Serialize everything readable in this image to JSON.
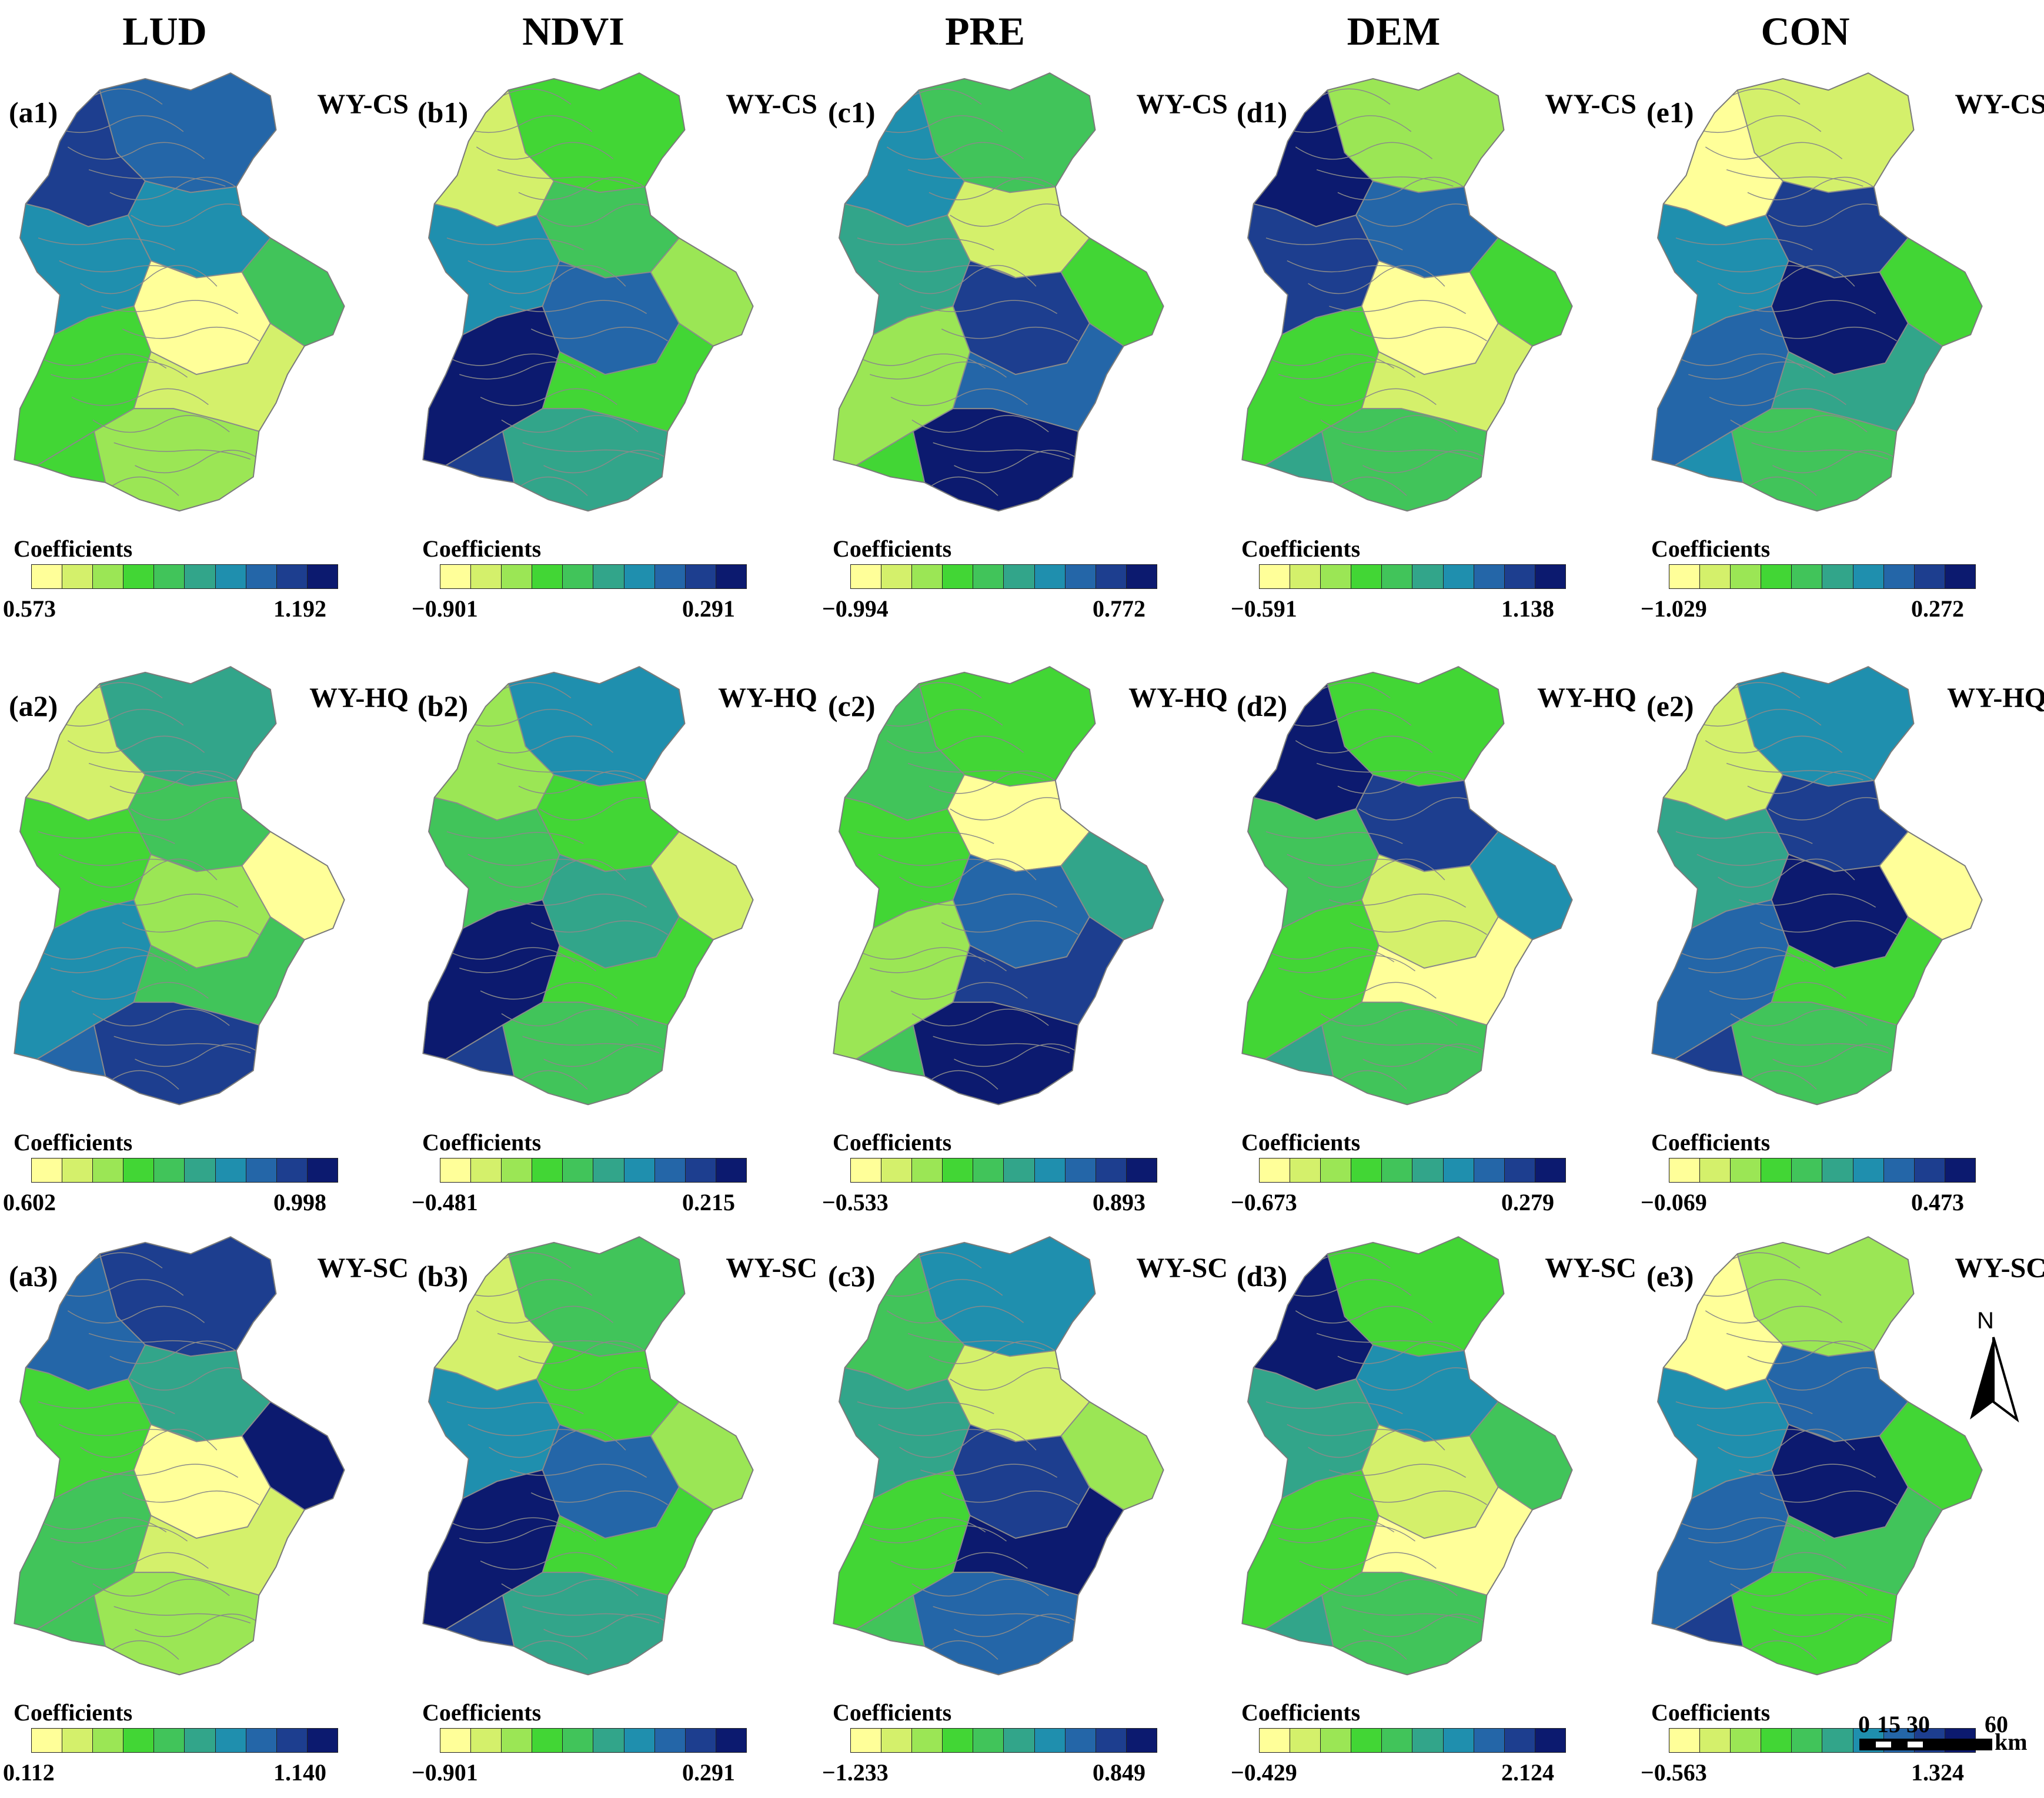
{
  "headers": [
    "LUD",
    "NDVI",
    "PRE",
    "DEM",
    "CON"
  ],
  "coef_label": "Coefficients",
  "palette": [
    "#ffff99",
    "#d4f06b",
    "#9be655",
    "#42d635",
    "#41c45a",
    "#32a58a",
    "#1f8fae",
    "#2466a8",
    "#1d3e8f",
    "#0c1a6f"
  ],
  "panels": [
    {
      "id": "(a1)",
      "scenario": "WY-CS",
      "min": "0.573",
      "max": "1.192"
    },
    {
      "id": "(b1)",
      "scenario": "WY-CS",
      "min": "−0.901",
      "max": "0.291"
    },
    {
      "id": "(c1)",
      "scenario": "WY-CS",
      "min": "−0.994",
      "max": "0.772"
    },
    {
      "id": "(d1)",
      "scenario": "WY-CS",
      "min": "−0.591",
      "max": "1.138"
    },
    {
      "id": "(e1)",
      "scenario": "WY-CS",
      "min": "−1.029",
      "max": "0.272"
    },
    {
      "id": "(a2)",
      "scenario": "WY-HQ",
      "min": "0.602",
      "max": "0.998"
    },
    {
      "id": "(b2)",
      "scenario": "WY-HQ",
      "min": "−0.481",
      "max": "0.215"
    },
    {
      "id": "(c2)",
      "scenario": "WY-HQ",
      "min": "−0.533",
      "max": "0.893"
    },
    {
      "id": "(d2)",
      "scenario": "WY-HQ",
      "min": "−0.673",
      "max": "0.279"
    },
    {
      "id": "(e2)",
      "scenario": "WY-HQ",
      "min": "−0.069",
      "max": "0.473"
    },
    {
      "id": "(a3)",
      "scenario": "WY-SC",
      "min": "0.112",
      "max": "1.140"
    },
    {
      "id": "(b3)",
      "scenario": "WY-SC",
      "min": "−0.901",
      "max": "0.291"
    },
    {
      "id": "(c3)",
      "scenario": "WY-SC",
      "min": "−1.233",
      "max": "0.849"
    },
    {
      "id": "(d3)",
      "scenario": "WY-SC",
      "min": "−0.429",
      "max": "2.124"
    },
    {
      "id": "(e3)",
      "scenario": "WY-SC",
      "min": "−0.563",
      "max": "1.324"
    }
  ],
  "north_label": "N",
  "scale": {
    "ticks": [
      "0",
      "15",
      "30",
      "60"
    ],
    "unit": "km"
  }
}
